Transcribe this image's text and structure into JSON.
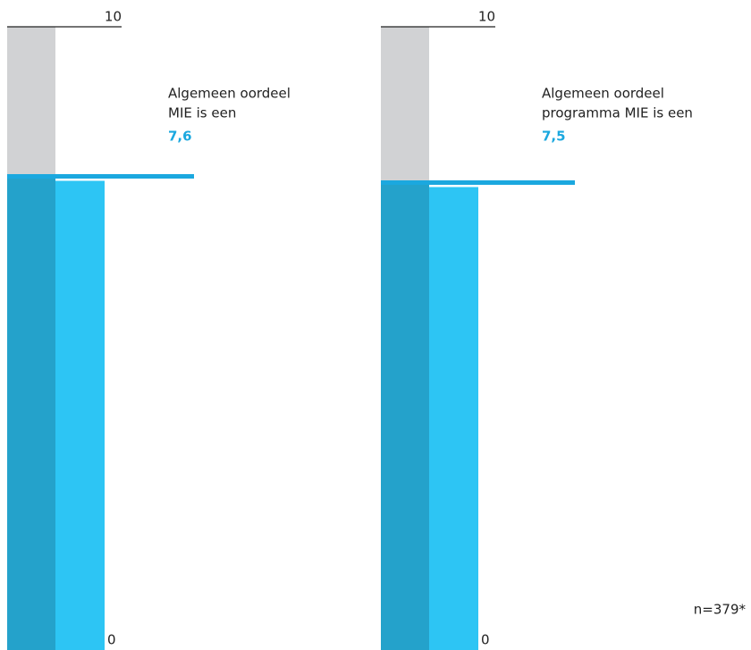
{
  "chart_data": [
    {
      "type": "gauge-bar",
      "title_lines": [
        "Algemeen oordeel",
        "MIE is een"
      ],
      "values": [
        7.6
      ],
      "value_labels": [
        "7,6"
      ],
      "ylim": [
        0,
        10
      ],
      "yticks": [
        0,
        10
      ],
      "color": "#24a2cb",
      "color_light": "#2dc5f4",
      "track_color": "#d1d2d4",
      "marker_color": "#1ba8df"
    },
    {
      "type": "gauge-bar",
      "title_lines": [
        "Algemeen oordeel",
        "programma MIE is een"
      ],
      "values": [
        7.5
      ],
      "value_labels": [
        "7,5"
      ],
      "ylim": [
        0,
        10
      ],
      "yticks": [
        0,
        10
      ],
      "color": "#24a2cb",
      "color_light": "#2dc5f4",
      "track_color": "#d1d2d4",
      "marker_color": "#1ba8df"
    }
  ],
  "footnote": "n=379*"
}
